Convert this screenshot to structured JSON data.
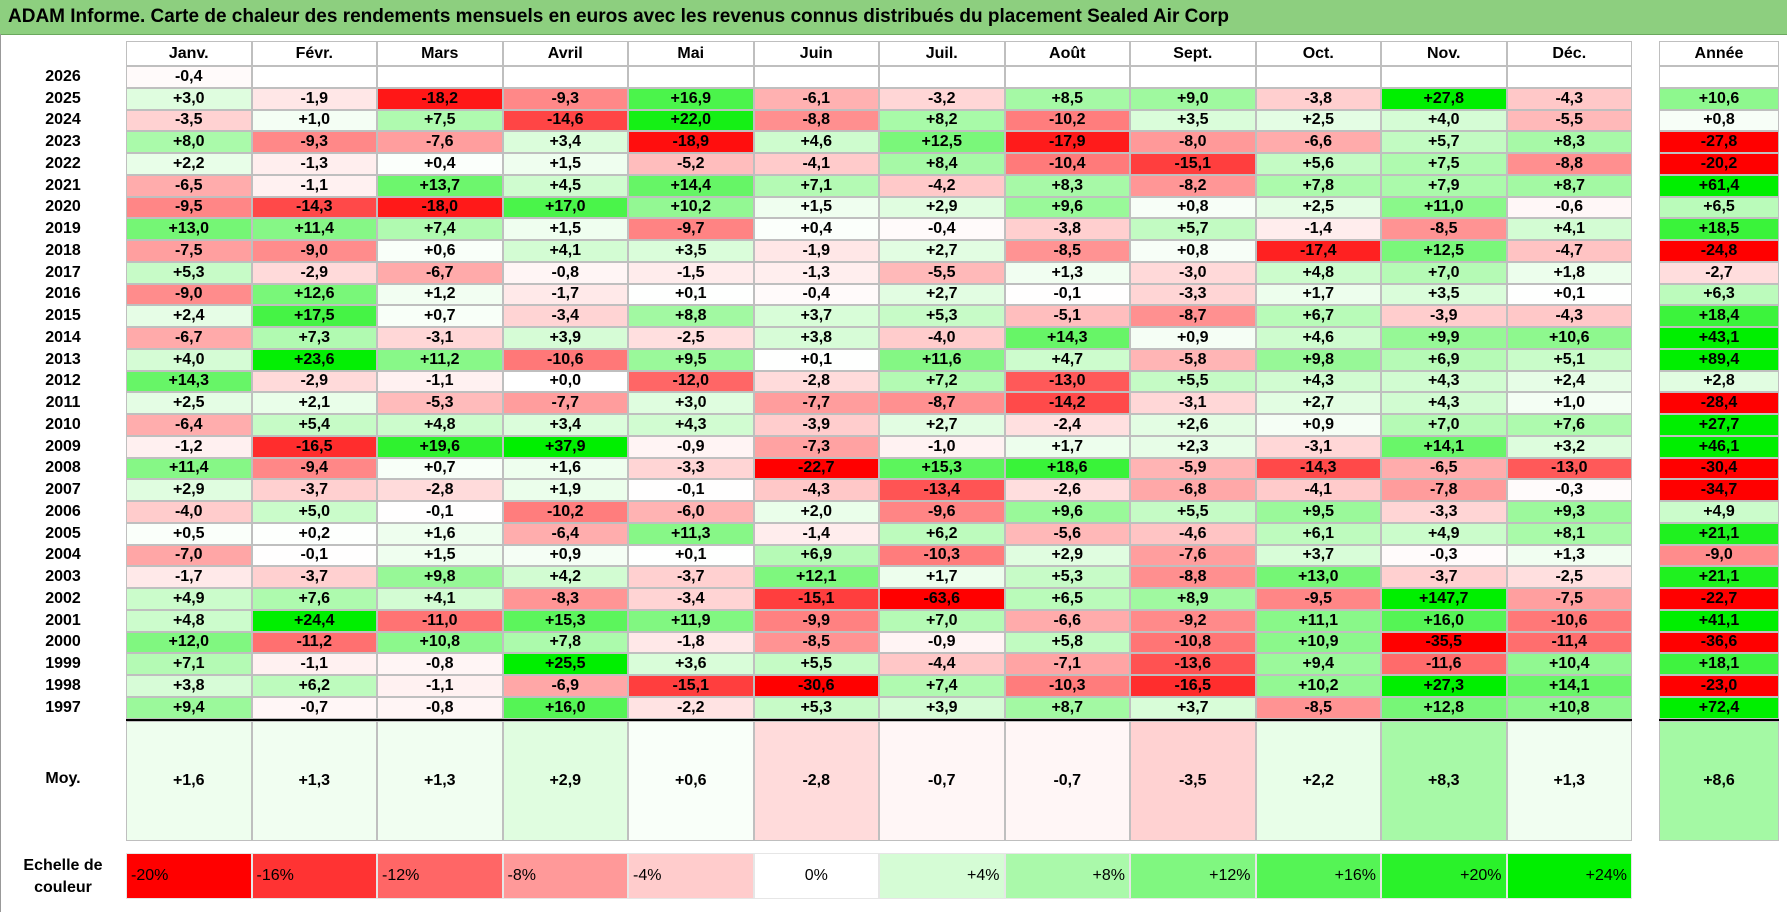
{
  "title": "ADAM Informe. Carte de chaleur des rendements mensuels en euros avec les revenus connus distribués du placement Sealed Air Corp",
  "chart_data": {
    "type": "heatmap",
    "title": "ADAM Informe. Carte de chaleur des rendements mensuels en euros avec les revenus connus distribués du placement Sealed Air Corp",
    "months": [
      "Janv.",
      "Févr.",
      "Mars",
      "Avril",
      "Mai",
      "Juin",
      "Juil.",
      "Août",
      "Sept.",
      "Oct.",
      "Nov.",
      "Déc."
    ],
    "year_header": "Année",
    "rows": [
      {
        "year": "2026",
        "values": [
          "-0,4",
          "",
          "",
          "",
          "",
          "",
          "",
          "",
          "",
          "",
          "",
          ""
        ],
        "annual": ""
      },
      {
        "year": "2025",
        "values": [
          "+3,0",
          "-1,9",
          "-18,2",
          "-9,3",
          "+16,9",
          "-6,1",
          "-3,2",
          "+8,5",
          "+9,0",
          "-3,8",
          "+27,8",
          "-4,3"
        ],
        "annual": "+10,6"
      },
      {
        "year": "2024",
        "values": [
          "-3,5",
          "+1,0",
          "+7,5",
          "-14,6",
          "+22,0",
          "-8,8",
          "+8,2",
          "-10,2",
          "+3,5",
          "+2,5",
          "+4,0",
          "-5,5"
        ],
        "annual": "+0,8"
      },
      {
        "year": "2023",
        "values": [
          "+8,0",
          "-9,3",
          "-7,6",
          "+3,4",
          "-18,9",
          "+4,6",
          "+12,5",
          "-17,9",
          "-8,0",
          "-6,6",
          "+5,7",
          "+8,3"
        ],
        "annual": "-27,8"
      },
      {
        "year": "2022",
        "values": [
          "+2,2",
          "-1,3",
          "+0,4",
          "+1,5",
          "-5,2",
          "-4,1",
          "+8,4",
          "-10,4",
          "-15,1",
          "+5,6",
          "+7,5",
          "-8,8"
        ],
        "annual": "-20,2"
      },
      {
        "year": "2021",
        "values": [
          "-6,5",
          "-1,1",
          "+13,7",
          "+4,5",
          "+14,4",
          "+7,1",
          "-4,2",
          "+8,3",
          "-8,2",
          "+7,8",
          "+7,9",
          "+8,7"
        ],
        "annual": "+61,4"
      },
      {
        "year": "2020",
        "values": [
          "-9,5",
          "-14,3",
          "-18,0",
          "+17,0",
          "+10,2",
          "+1,5",
          "+2,9",
          "+9,6",
          "+0,8",
          "+2,5",
          "+11,0",
          "-0,6"
        ],
        "annual": "+6,5"
      },
      {
        "year": "2019",
        "values": [
          "+13,0",
          "+11,4",
          "+7,4",
          "+1,5",
          "-9,7",
          "+0,4",
          "-0,4",
          "-3,8",
          "+5,7",
          "-1,4",
          "-8,5",
          "+4,1"
        ],
        "annual": "+18,5"
      },
      {
        "year": "2018",
        "values": [
          "-7,5",
          "-9,0",
          "+0,6",
          "+4,1",
          "+3,5",
          "-1,9",
          "+2,7",
          "-8,5",
          "+0,8",
          "-17,4",
          "+12,5",
          "-4,7"
        ],
        "annual": "-24,8"
      },
      {
        "year": "2017",
        "values": [
          "+5,3",
          "-2,9",
          "-6,7",
          "-0,8",
          "-1,5",
          "-1,3",
          "-5,5",
          "+1,3",
          "-3,0",
          "+4,8",
          "+7,0",
          "+1,8"
        ],
        "annual": "-2,7"
      },
      {
        "year": "2016",
        "values": [
          "-9,0",
          "+12,6",
          "+1,2",
          "-1,7",
          "+0,1",
          "-0,4",
          "+2,7",
          "-0,1",
          "-3,3",
          "+1,7",
          "+3,5",
          "+0,1"
        ],
        "annual": "+6,3"
      },
      {
        "year": "2015",
        "values": [
          "+2,4",
          "+17,5",
          "+0,7",
          "-3,4",
          "+8,8",
          "+3,7",
          "+5,3",
          "-5,1",
          "-8,7",
          "+6,7",
          "-3,9",
          "-4,3"
        ],
        "annual": "+18,4"
      },
      {
        "year": "2014",
        "values": [
          "-6,7",
          "+7,3",
          "-3,1",
          "+3,9",
          "-2,5",
          "+3,8",
          "-4,0",
          "+14,3",
          "+0,9",
          "+4,6",
          "+9,9",
          "+10,6"
        ],
        "annual": "+43,1"
      },
      {
        "year": "2013",
        "values": [
          "+4,0",
          "+23,6",
          "+11,2",
          "-10,6",
          "+9,5",
          "+0,1",
          "+11,6",
          "+4,7",
          "-5,8",
          "+9,8",
          "+6,9",
          "+5,1"
        ],
        "annual": "+89,4"
      },
      {
        "year": "2012",
        "values": [
          "+14,3",
          "-2,9",
          "-1,1",
          "+0,0",
          "-12,0",
          "-2,8",
          "+7,2",
          "-13,0",
          "+5,5",
          "+4,3",
          "+4,3",
          "+2,4"
        ],
        "annual": "+2,8"
      },
      {
        "year": "2011",
        "values": [
          "+2,5",
          "+2,1",
          "-5,3",
          "-7,7",
          "+3,0",
          "-7,7",
          "-8,7",
          "-14,2",
          "-3,1",
          "+2,7",
          "+4,3",
          "+1,0"
        ],
        "annual": "-28,4"
      },
      {
        "year": "2010",
        "values": [
          "-6,4",
          "+5,4",
          "+4,8",
          "+3,4",
          "+4,3",
          "-3,9",
          "+2,7",
          "-2,4",
          "+2,6",
          "+0,9",
          "+7,0",
          "+7,6"
        ],
        "annual": "+27,7"
      },
      {
        "year": "2009",
        "values": [
          "-1,2",
          "-16,5",
          "+19,6",
          "+37,9",
          "-0,9",
          "-7,3",
          "-1,0",
          "+1,7",
          "+2,3",
          "-3,1",
          "+14,1",
          "+3,2"
        ],
        "annual": "+46,1"
      },
      {
        "year": "2008",
        "values": [
          "+11,4",
          "-9,4",
          "+0,7",
          "+1,6",
          "-3,3",
          "-22,7",
          "+15,3",
          "+18,6",
          "-5,9",
          "-14,3",
          "-6,5",
          "-13,0"
        ],
        "annual": "-30,4"
      },
      {
        "year": "2007",
        "values": [
          "+2,9",
          "-3,7",
          "-2,8",
          "+1,9",
          "-0,1",
          "-4,3",
          "-13,4",
          "-2,6",
          "-6,8",
          "-4,1",
          "-7,8",
          "-0,3"
        ],
        "annual": "-34,7"
      },
      {
        "year": "2006",
        "values": [
          "-4,0",
          "+5,0",
          "-0,1",
          "-10,2",
          "-6,0",
          "+2,0",
          "-9,6",
          "+9,6",
          "+5,5",
          "+9,5",
          "-3,3",
          "+9,3"
        ],
        "annual": "+4,9"
      },
      {
        "year": "2005",
        "values": [
          "+0,5",
          "+0,2",
          "+1,6",
          "-6,4",
          "+11,3",
          "-1,4",
          "+6,2",
          "-5,6",
          "-4,6",
          "+6,1",
          "+4,9",
          "+8,1"
        ],
        "annual": "+21,1"
      },
      {
        "year": "2004",
        "values": [
          "-7,0",
          "-0,1",
          "+1,5",
          "+0,9",
          "+0,1",
          "+6,9",
          "-10,3",
          "+2,9",
          "-7,6",
          "+3,7",
          "-0,3",
          "+1,3"
        ],
        "annual": "-9,0"
      },
      {
        "year": "2003",
        "values": [
          "-1,7",
          "-3,7",
          "+9,8",
          "+4,2",
          "-3,7",
          "+12,1",
          "+1,7",
          "+5,3",
          "-8,8",
          "+13,0",
          "-3,7",
          "-2,5"
        ],
        "annual": "+21,1"
      },
      {
        "year": "2002",
        "values": [
          "+4,9",
          "+7,6",
          "+4,1",
          "-8,3",
          "-3,4",
          "-15,1",
          "-63,6",
          "+6,5",
          "+8,9",
          "-9,5",
          "+147,7",
          "-7,5"
        ],
        "annual": "-22,7"
      },
      {
        "year": "2001",
        "values": [
          "+4,8",
          "+24,4",
          "-11,0",
          "+15,3",
          "+11,9",
          "-9,9",
          "+7,0",
          "-6,6",
          "-9,2",
          "+11,1",
          "+16,0",
          "-10,6"
        ],
        "annual": "+41,1"
      },
      {
        "year": "2000",
        "values": [
          "+12,0",
          "-11,2",
          "+10,8",
          "+7,8",
          "-1,8",
          "-8,5",
          "-0,9",
          "+5,8",
          "-10,8",
          "+10,9",
          "-35,5",
          "-11,4"
        ],
        "annual": "-36,6"
      },
      {
        "year": "1999",
        "values": [
          "+7,1",
          "-1,1",
          "-0,8",
          "+25,5",
          "+3,6",
          "+5,5",
          "-4,4",
          "-7,1",
          "-13,6",
          "+9,4",
          "-11,6",
          "+10,4"
        ],
        "annual": "+18,1"
      },
      {
        "year": "1998",
        "values": [
          "+3,8",
          "+6,2",
          "-1,1",
          "-6,9",
          "-15,1",
          "-30,6",
          "+7,4",
          "-10,3",
          "-16,5",
          "+10,2",
          "+27,3",
          "+14,1"
        ],
        "annual": "-23,0"
      },
      {
        "year": "1997",
        "values": [
          "+9,4",
          "-0,7",
          "-0,8",
          "+16,0",
          "-2,2",
          "+5,3",
          "+3,9",
          "+8,7",
          "+3,7",
          "-8,5",
          "+12,8",
          "+10,8"
        ],
        "annual": "+72,4"
      }
    ],
    "average": {
      "label": "Moy.",
      "values": [
        "+1,6",
        "+1,3",
        "+1,3",
        "+2,9",
        "+0,6",
        "-2,8",
        "-0,7",
        "-0,7",
        "-3,5",
        "+2,2",
        "+8,3",
        "+1,3"
      ],
      "annual": "+8,6"
    },
    "legend": {
      "label_line1": "Echelle de",
      "label_line2": "couleur",
      "steps": [
        {
          "text": "-20%",
          "value": -20,
          "color": "#ff0000"
        },
        {
          "text": "-16%",
          "value": -16,
          "color": "#ff3333"
        },
        {
          "text": "-12%",
          "value": -12,
          "color": "#ff6666"
        },
        {
          "text": "-8%",
          "value": -8,
          "color": "#ff9999"
        },
        {
          "text": "-4%",
          "value": -4,
          "color": "#ffcccc"
        },
        {
          "text": "0%",
          "value": 0,
          "color": "#ffffff"
        },
        {
          "text": "+4%",
          "value": 4,
          "color": "#d5fcd5"
        },
        {
          "text": "+8%",
          "value": 8,
          "color": "#aaf9aa"
        },
        {
          "text": "+12%",
          "value": 12,
          "color": "#80f780"
        },
        {
          "text": "+16%",
          "value": 16,
          "color": "#55f455"
        },
        {
          "text": "+20%",
          "value": 20,
          "color": "#2af22a"
        },
        {
          "text": "+24%",
          "value": 24,
          "color": "#00ef00"
        }
      ]
    }
  }
}
